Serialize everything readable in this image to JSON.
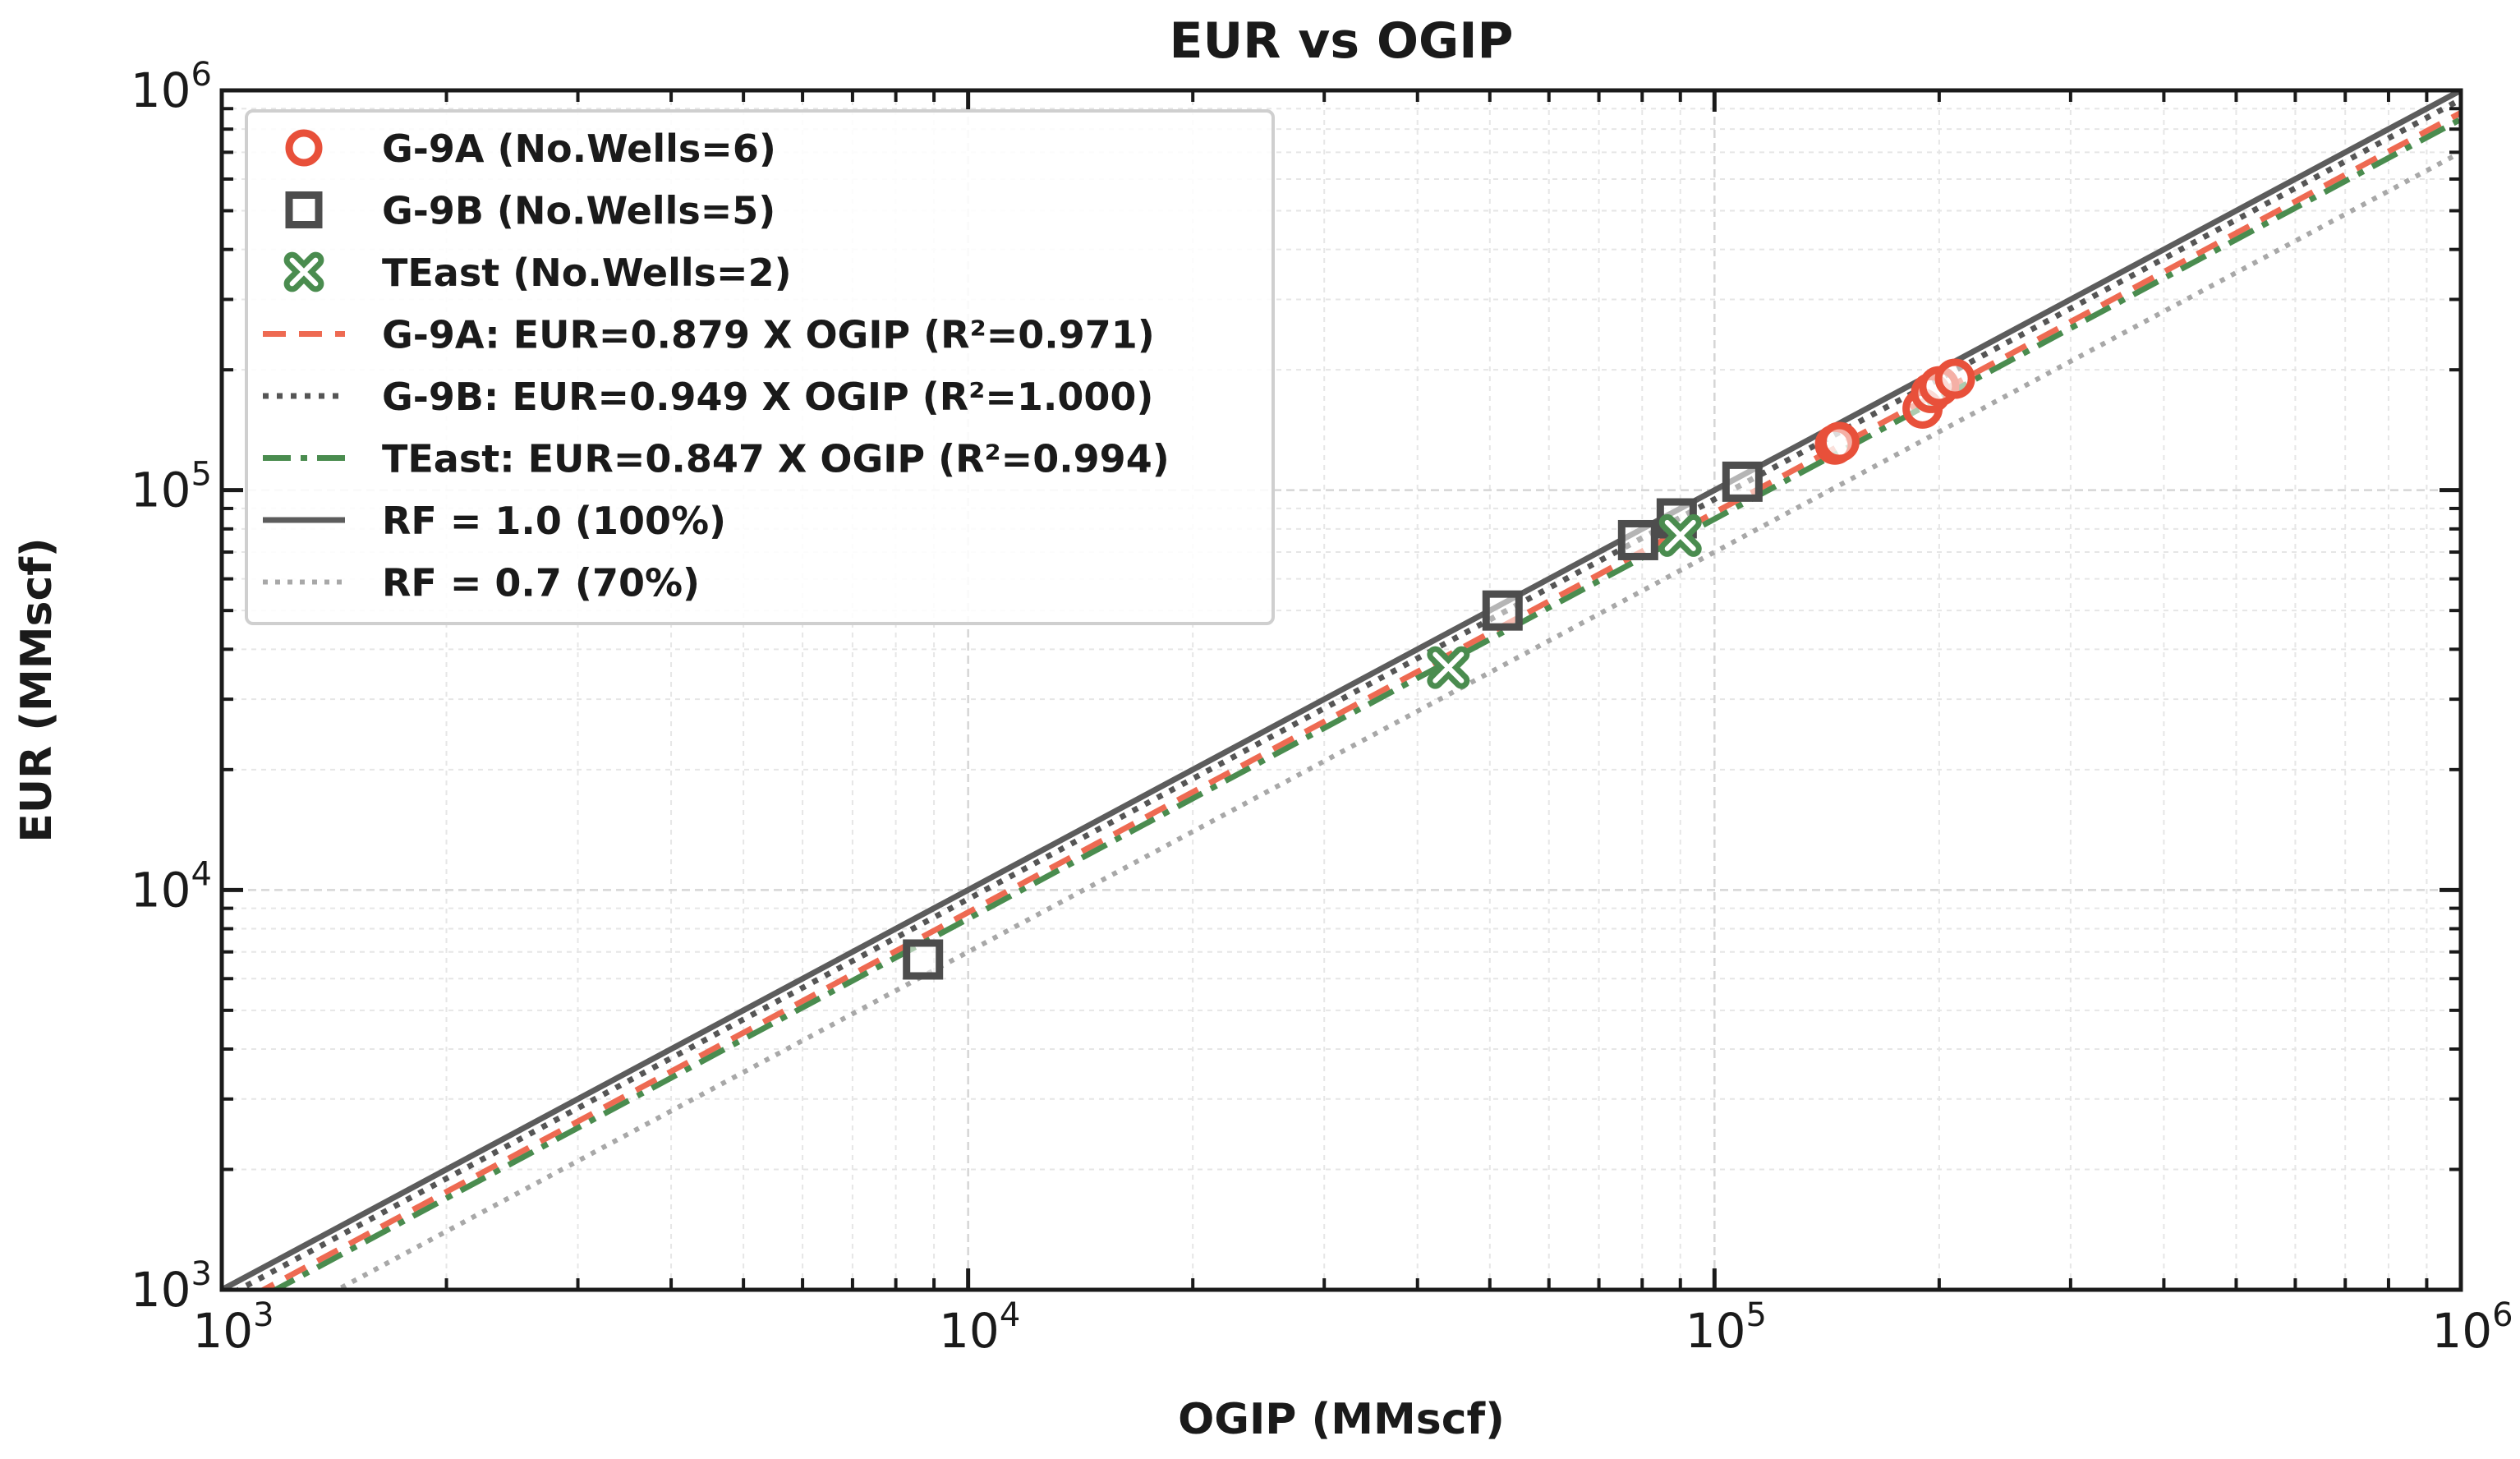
{
  "chart_data": {
    "type": "scatter",
    "title": "EUR vs OGIP",
    "xlabel": "OGIP (MMscf)",
    "ylabel": "EUR (MMscf)",
    "xscale": "log",
    "yscale": "log",
    "xlim": [
      1000,
      1000000
    ],
    "ylim": [
      1000,
      1000000
    ],
    "grid": true,
    "legend_position": "top-left",
    "xticks": [
      {
        "base": "10",
        "exp": "3",
        "value": 1000
      },
      {
        "base": "10",
        "exp": "4",
        "value": 10000
      },
      {
        "base": "10",
        "exp": "5",
        "value": 100000
      },
      {
        "base": "10",
        "exp": "6",
        "value": 1000000
      }
    ],
    "yticks": [
      {
        "base": "10",
        "exp": "3",
        "value": 1000
      },
      {
        "base": "10",
        "exp": "4",
        "value": 10000
      },
      {
        "base": "10",
        "exp": "5",
        "value": 100000
      },
      {
        "base": "10",
        "exp": "6",
        "value": 1000000
      }
    ],
    "series": [
      {
        "name": "G-9A (No.Wells=6)",
        "marker": "circle",
        "color": "#e8503a",
        "points": [
          {
            "x": 145000,
            "y": 130000
          },
          {
            "x": 147000,
            "y": 132000
          },
          {
            "x": 190000,
            "y": 160000
          },
          {
            "x": 195000,
            "y": 175000
          },
          {
            "x": 200000,
            "y": 182000
          },
          {
            "x": 210000,
            "y": 190000
          }
        ]
      },
      {
        "name": "G-9B (No.Wells=5)",
        "marker": "square",
        "color": "#4d4d4d",
        "points": [
          {
            "x": 8700,
            "y": 6700
          },
          {
            "x": 52000,
            "y": 50000
          },
          {
            "x": 79000,
            "y": 75000
          },
          {
            "x": 89000,
            "y": 85000
          },
          {
            "x": 109000,
            "y": 105000
          }
        ]
      },
      {
        "name": "TEast (No.Wells=2)",
        "marker": "x",
        "color": "#4a8c4f",
        "points": [
          {
            "x": 44000,
            "y": 36000
          },
          {
            "x": 90000,
            "y": 77000
          }
        ]
      }
    ],
    "lines": [
      {
        "name": "G-9A: EUR=0.879 X OGIP (R²=0.971)",
        "slope": 0.879,
        "style": "dashed",
        "color": "#ee6a52"
      },
      {
        "name": "G-9B: EUR=0.949 X OGIP (R²=1.000)",
        "slope": 0.949,
        "style": "dotted",
        "color": "#555555"
      },
      {
        "name": "TEast: EUR=0.847 X OGIP (R²=0.994)",
        "slope": 0.847,
        "style": "dashdot",
        "color": "#4a8c4f"
      },
      {
        "name": "RF = 1.0 (100%)",
        "slope": 1.0,
        "style": "solid",
        "color": "#5c5c5c"
      },
      {
        "name": "RF = 0.7 (70%)",
        "slope": 0.7,
        "style": "dotted-light",
        "color": "#a8a8a8"
      }
    ]
  }
}
